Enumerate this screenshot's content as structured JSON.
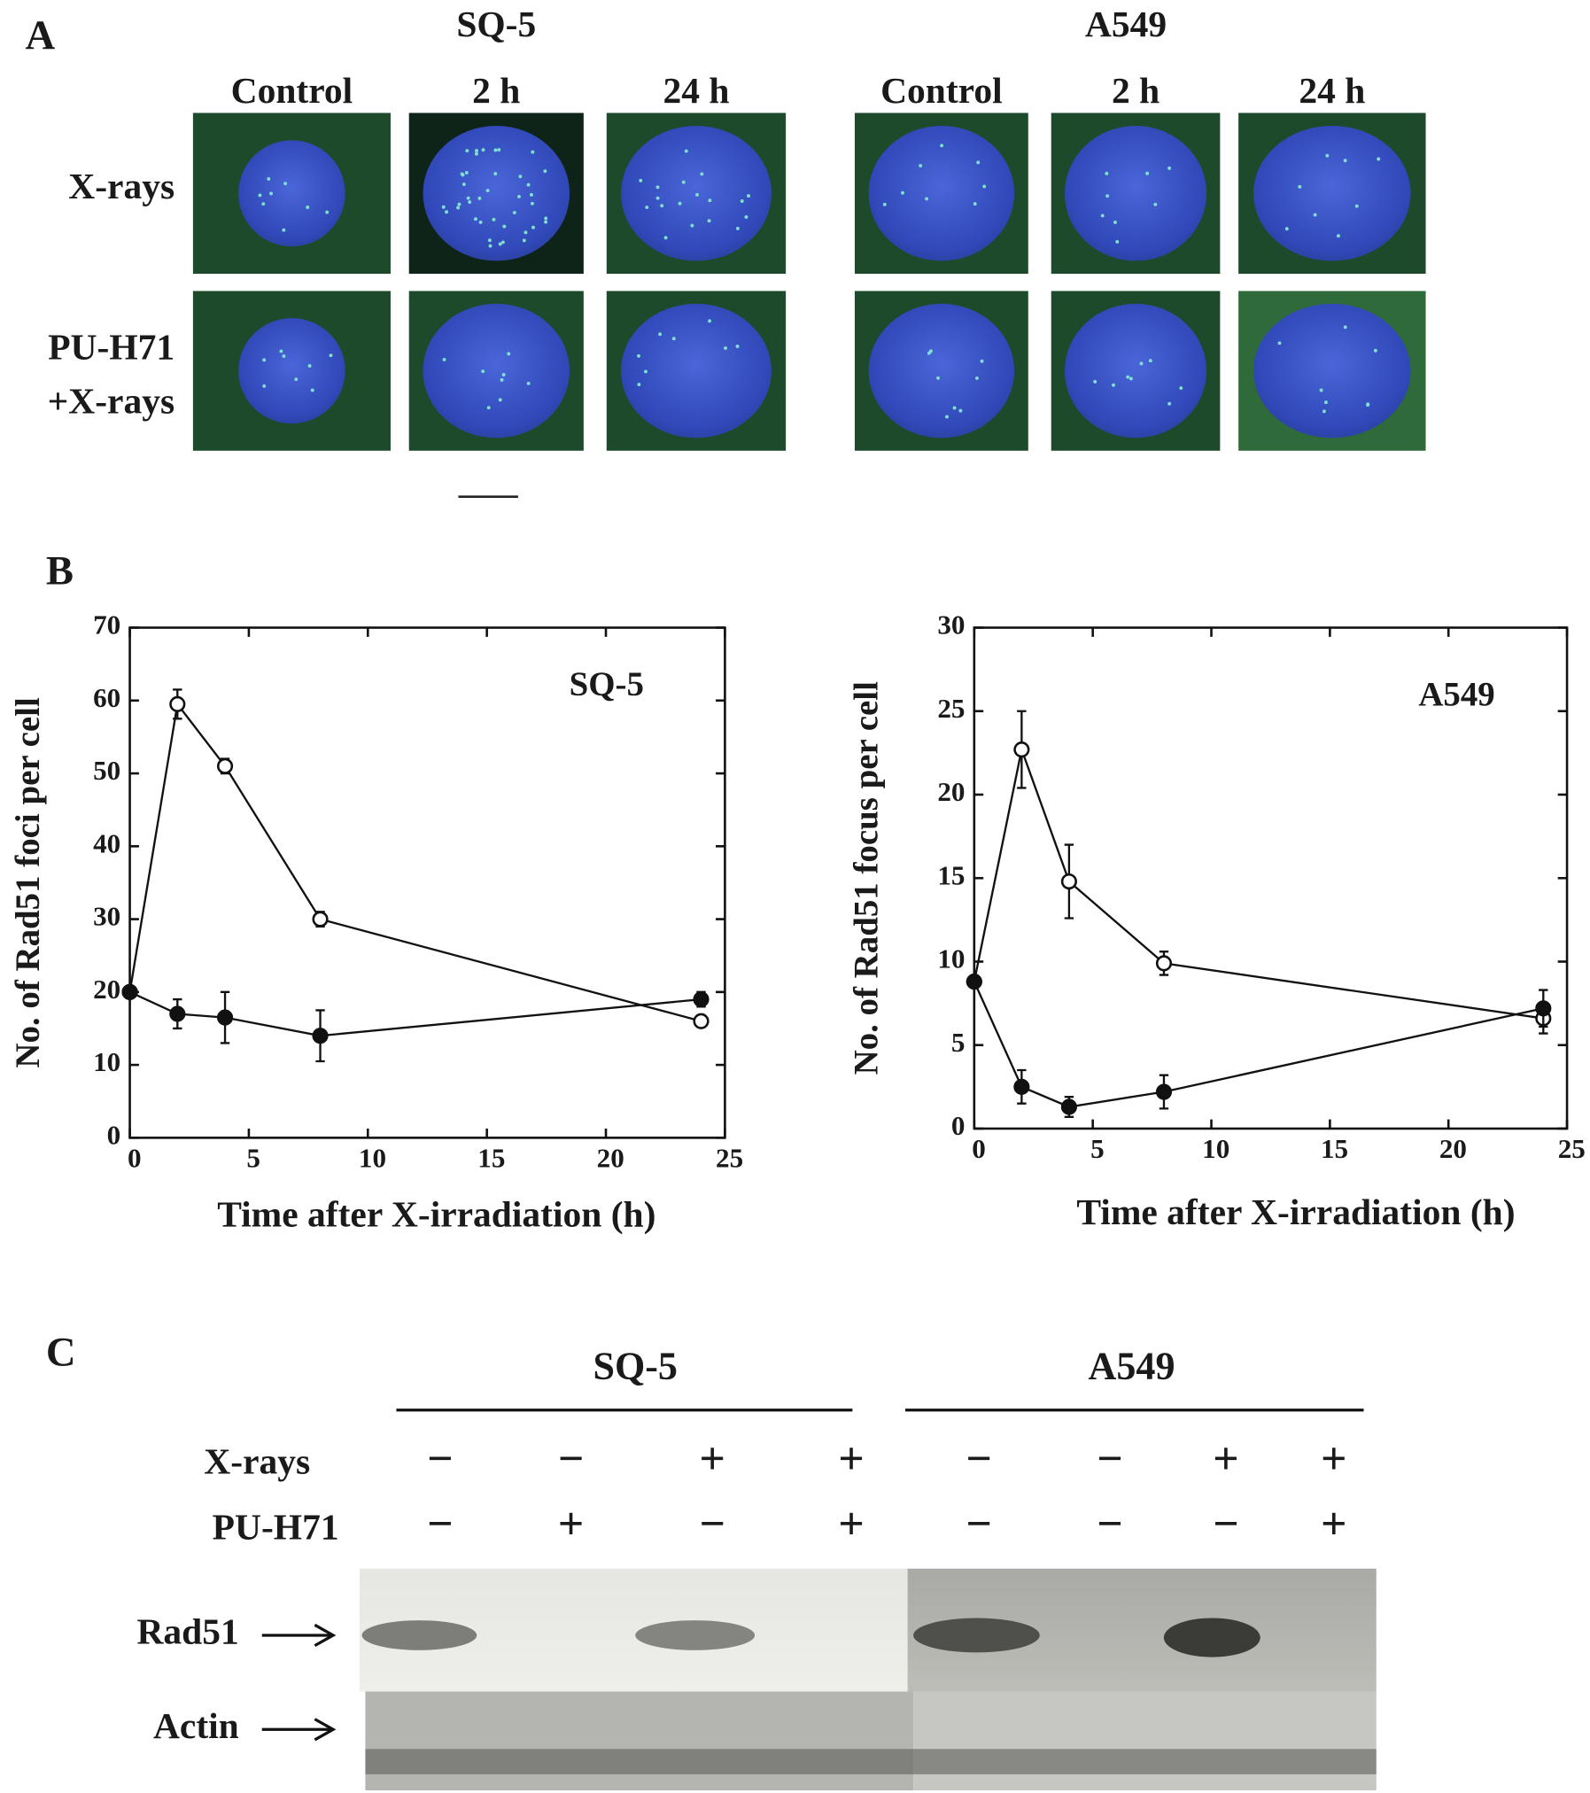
{
  "panel_a": {
    "label": "A",
    "cell_lines": [
      "SQ-5",
      "A549"
    ],
    "columns": [
      "Control",
      "2 h",
      "24 h",
      "Control",
      "2 h",
      "24 h"
    ],
    "rows": [
      "X-rays",
      "PU-H71",
      "+X-rays"
    ]
  },
  "panel_b_label": "B",
  "chart_data": [
    {
      "type": "line",
      "annotation": "SQ-5",
      "xlabel": "Time after X-irradiation (h)",
      "ylabel": "No. of Rad51 foci per cell",
      "x": [
        0,
        2,
        4,
        8,
        24
      ],
      "xlim": [
        0,
        25
      ],
      "xticks": [
        0,
        5,
        10,
        15,
        20,
        25
      ],
      "ylim": [
        0,
        70
      ],
      "yticks": [
        0,
        10,
        20,
        30,
        40,
        50,
        60,
        70
      ],
      "series": [
        {
          "marker": "open",
          "color": "#111111",
          "values": [
            20,
            59.5,
            51,
            30,
            16
          ],
          "errors": [
            0.5,
            2,
            1,
            1,
            0.5
          ]
        },
        {
          "marker": "filled",
          "color": "#111111",
          "values": [
            20,
            17,
            16.5,
            14,
            19
          ],
          "errors": [
            0.5,
            2,
            3.5,
            3.5,
            1
          ]
        }
      ]
    },
    {
      "type": "line",
      "annotation": "A549",
      "xlabel": "Time after X-irradiation (h)",
      "ylabel": "No. of Rad51 focus per cell",
      "x": [
        0,
        2,
        4,
        8,
        24
      ],
      "xlim": [
        0,
        25
      ],
      "xticks": [
        0,
        5,
        10,
        15,
        20,
        25
      ],
      "ylim": [
        0,
        30
      ],
      "yticks": [
        0,
        5,
        10,
        15,
        20,
        25,
        30
      ],
      "series": [
        {
          "marker": "open",
          "color": "#111111",
          "values": [
            8.8,
            22.7,
            14.8,
            9.9,
            6.6
          ],
          "errors": [
            0.3,
            2.3,
            2.2,
            0.7,
            0.9
          ]
        },
        {
          "marker": "filled",
          "color": "#111111",
          "values": [
            8.8,
            2.5,
            1.3,
            2.2,
            7.2
          ],
          "errors": [
            0.3,
            1,
            0.6,
            1,
            1.1
          ]
        }
      ]
    }
  ],
  "panel_c": {
    "label": "C",
    "cell_lines": [
      "SQ-5",
      "A549"
    ],
    "rows": [
      {
        "label": "X-rays",
        "cells": [
          "−",
          "−",
          "+",
          "+",
          "−",
          "−",
          "+",
          "+"
        ]
      },
      {
        "label": "PU-H71",
        "cells": [
          "−",
          "+",
          "−",
          "+",
          "−",
          "−",
          "−",
          "+"
        ]
      }
    ],
    "blots": [
      "Rad51",
      "Actin"
    ]
  }
}
